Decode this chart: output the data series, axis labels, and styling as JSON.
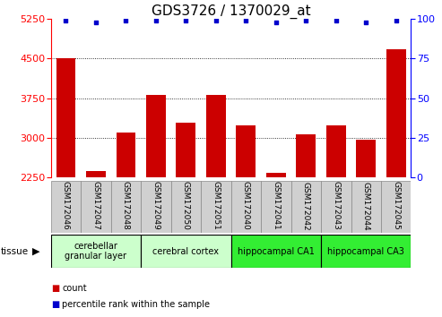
{
  "title": "GDS3726 / 1370029_at",
  "samples": [
    "GSM172046",
    "GSM172047",
    "GSM172048",
    "GSM172049",
    "GSM172050",
    "GSM172051",
    "GSM172040",
    "GSM172041",
    "GSM172042",
    "GSM172043",
    "GSM172044",
    "GSM172045"
  ],
  "counts": [
    4500,
    2380,
    3100,
    3820,
    3280,
    3820,
    3240,
    2340,
    3060,
    3240,
    2960,
    4680
  ],
  "percentiles": [
    99,
    98,
    99,
    99,
    99,
    99,
    99,
    98,
    99,
    99,
    98,
    99
  ],
  "ylim_left": [
    2250,
    5250
  ],
  "yticks_left": [
    2250,
    3000,
    3750,
    4500,
    5250
  ],
  "ylim_right": [
    0,
    100
  ],
  "yticks_right": [
    0,
    25,
    50,
    75,
    100
  ],
  "bar_color": "#cc0000",
  "dot_color": "#0000cc",
  "tissue_groups": [
    {
      "label": "cerebellar\ngranular layer",
      "start": 0,
      "end": 3,
      "color": "#ccffcc"
    },
    {
      "label": "cerebral cortex",
      "start": 3,
      "end": 6,
      "color": "#ccffcc"
    },
    {
      "label": "hippocampal CA1",
      "start": 6,
      "end": 9,
      "color": "#33ee33"
    },
    {
      "label": "hippocampal CA3",
      "start": 9,
      "end": 12,
      "color": "#33ee33"
    }
  ],
  "tissue_label": "tissue",
  "legend_count_label": "count",
  "legend_percentile_label": "percentile rank within the sample",
  "background_color": "#ffffff",
  "sample_box_color": "#d0d0d0",
  "title_fontsize": 11,
  "tick_fontsize": 8,
  "bar_width": 0.65
}
